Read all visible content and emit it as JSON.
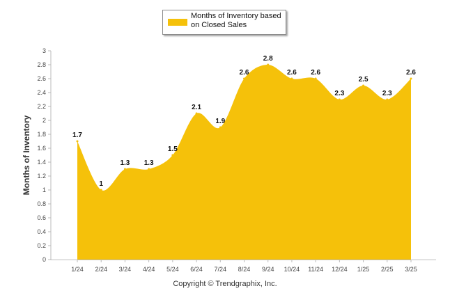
{
  "chart_data": {
    "type": "area",
    "categories": [
      "1/24",
      "2/24",
      "3/24",
      "4/24",
      "5/24",
      "6/24",
      "7/24",
      "8/24",
      "9/24",
      "10/24",
      "11/24",
      "12/24",
      "1/25",
      "2/25",
      "3/25"
    ],
    "series": [
      {
        "name": "Months of Inventory based on Closed Sales",
        "values": [
          1.7,
          1,
          1.3,
          1.3,
          1.5,
          2.1,
          1.9,
          2.6,
          2.8,
          2.6,
          2.6,
          2.3,
          2.5,
          2.3,
          2.6
        ]
      }
    ],
    "data_labels": [
      "1.7",
      "1",
      "1.3",
      "1.3",
      "1.5",
      "2.1",
      "1.9",
      "2.6",
      "2.8",
      "2.6",
      "2.6",
      "2.3",
      "2.5",
      "2.3",
      "2.6"
    ],
    "ylabel": "Months of Inventory",
    "ylim": [
      0,
      3
    ],
    "yticks": [
      "0",
      "0.2",
      "0.4",
      "0.6",
      "0.8",
      "1",
      "1.2",
      "1.4",
      "1.6",
      "1.8",
      "2",
      "2.2",
      "2.4",
      "2.6",
      "2.8",
      "3"
    ],
    "grid": false,
    "legend": "top-center",
    "color": "#f5c10a"
  },
  "legend": {
    "label": "Months of Inventory based on Closed Sales"
  },
  "footer": {
    "copyright": "Copyright © Trendgraphix, Inc."
  }
}
